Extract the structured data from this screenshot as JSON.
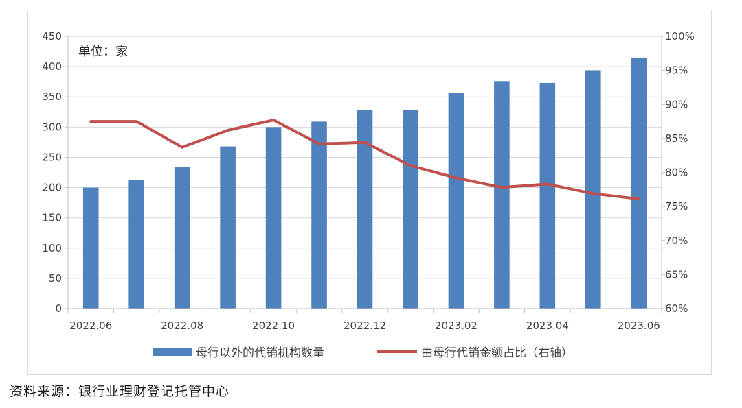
{
  "chart_data": {
    "type": "bar",
    "unit_label": "单位：家",
    "categories": [
      "2022.06",
      "2022.07",
      "2022.08",
      "2022.09",
      "2022.10",
      "2022.11",
      "2022.12",
      "2023.01",
      "2023.02",
      "2023.03",
      "2023.04",
      "2023.05",
      "2023.06"
    ],
    "x_tick_labels": [
      "2022.06",
      "2022.08",
      "2022.10",
      "2022.12",
      "2023.02",
      "2023.04",
      "2023.06"
    ],
    "series": [
      {
        "name": "母行以外的代销机构数量",
        "type": "bar",
        "axis": "left",
        "color": "#4f81bd",
        "values": [
          200,
          213,
          234,
          268,
          300,
          309,
          328,
          328,
          357,
          376,
          373,
          394,
          415
        ]
      },
      {
        "name": "由母行代销金额占比（右轴）",
        "type": "line",
        "axis": "right",
        "color": "#c0504d",
        "values": [
          87.5,
          87.5,
          83.7,
          86.2,
          87.7,
          84.2,
          84.4,
          81.0,
          79.2,
          77.8,
          78.3,
          76.9,
          76.1
        ]
      }
    ],
    "y_left": {
      "min": 0,
      "max": 450,
      "step": 50,
      "ticks": [
        "0",
        "50",
        "100",
        "150",
        "200",
        "250",
        "300",
        "350",
        "400",
        "450"
      ]
    },
    "y_right": {
      "min": 60,
      "max": 100,
      "step": 5,
      "ticks": [
        "60%",
        "65%",
        "70%",
        "75%",
        "80%",
        "85%",
        "90%",
        "95%",
        "100%"
      ]
    },
    "grid": true,
    "legend_position": "bottom"
  },
  "source": "资料来源：银行业理财登记托管中心"
}
